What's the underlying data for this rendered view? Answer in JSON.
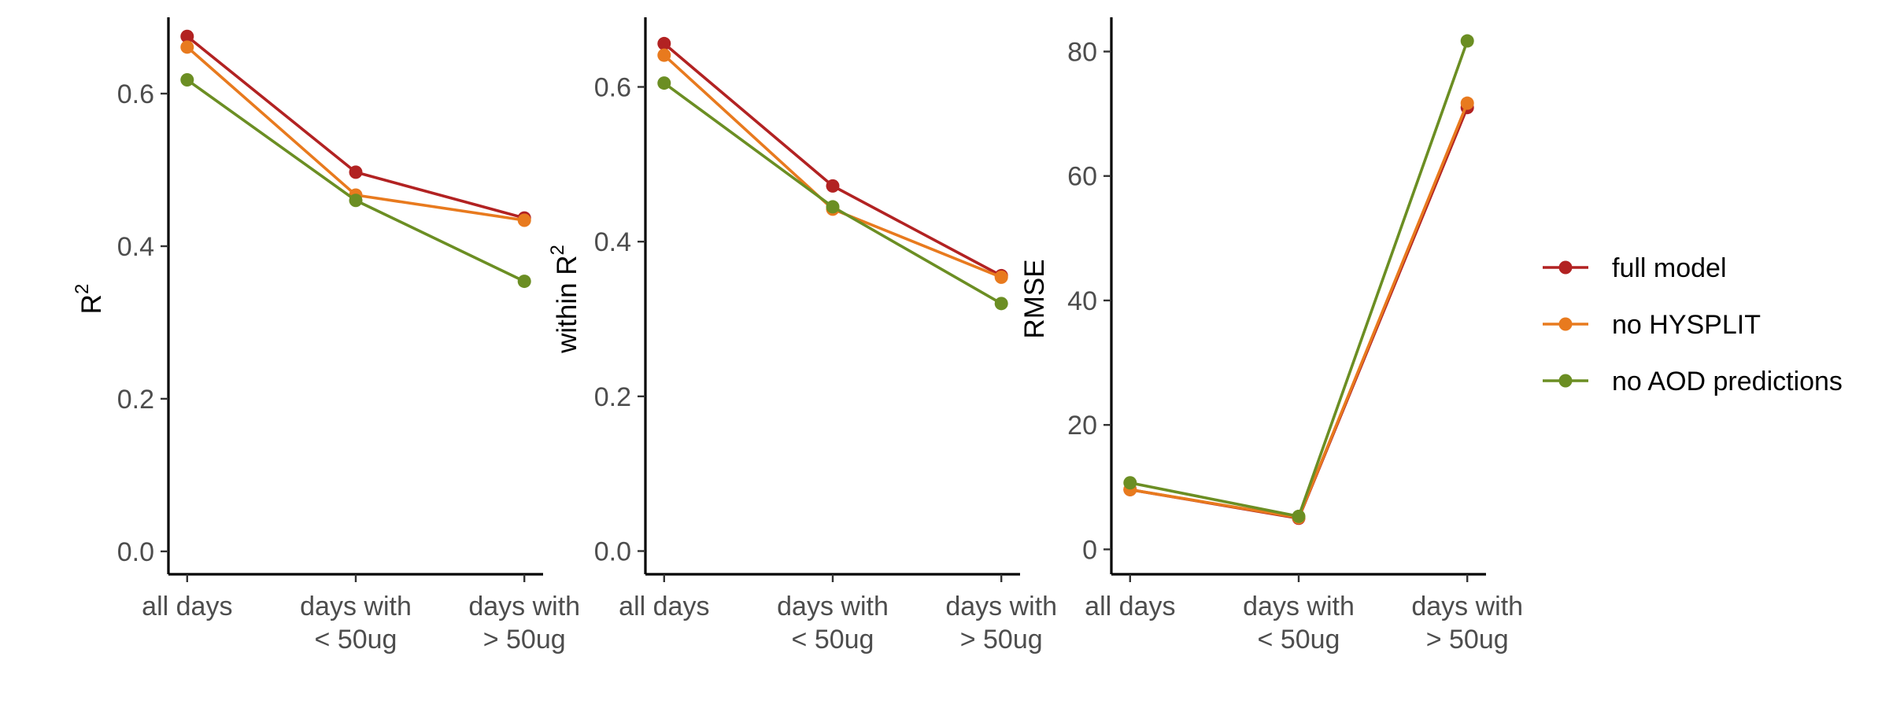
{
  "chart_data": [
    {
      "type": "line",
      "ylabel": "R²",
      "ylabel_main": "R",
      "ylabel_sup": "2",
      "categories": [
        "all days",
        "days with\n< 50ug",
        "days with\n> 50ug"
      ],
      "ylim": [
        -0.03,
        0.7
      ],
      "yticks": [
        0.0,
        0.2,
        0.4,
        0.6
      ],
      "ytick_labels": [
        "0.0",
        "0.2",
        "0.4",
        "0.6"
      ],
      "series": [
        {
          "name": "full model",
          "values": [
            0.675,
            0.497,
            0.437
          ]
        },
        {
          "name": "no HYSPLIT",
          "values": [
            0.661,
            0.467,
            0.434
          ]
        },
        {
          "name": "no AOD predictions",
          "values": [
            0.618,
            0.46,
            0.354
          ]
        }
      ]
    },
    {
      "type": "line",
      "ylabel": "within R²",
      "ylabel_main": "within R",
      "ylabel_sup": "2",
      "categories": [
        "all days",
        "days with\n< 50ug",
        "days with\n> 50ug"
      ],
      "ylim": [
        -0.03,
        0.69
      ],
      "yticks": [
        0.0,
        0.2,
        0.4,
        0.6
      ],
      "ytick_labels": [
        "0.0",
        "0.2",
        "0.4",
        "0.6"
      ],
      "series": [
        {
          "name": "full model",
          "values": [
            0.656,
            0.472,
            0.356
          ]
        },
        {
          "name": "no HYSPLIT",
          "values": [
            0.641,
            0.442,
            0.354
          ]
        },
        {
          "name": "no AOD predictions",
          "values": [
            0.605,
            0.445,
            0.32
          ]
        }
      ]
    },
    {
      "type": "line",
      "ylabel": "RMSE",
      "ylabel_main": "RMSE",
      "ylabel_sup": "",
      "categories": [
        "all days",
        "days with\n< 50ug",
        "days with\n> 50ug"
      ],
      "ylim": [
        -4,
        85.5
      ],
      "yticks": [
        0,
        20,
        40,
        60,
        80
      ],
      "ytick_labels": [
        "0",
        "20",
        "40",
        "60",
        "80"
      ],
      "series": [
        {
          "name": "full model",
          "values": [
            9.6,
            5.0,
            71.0
          ]
        },
        {
          "name": "no HYSPLIT",
          "values": [
            9.6,
            5.1,
            71.7
          ]
        },
        {
          "name": "no AOD predictions",
          "values": [
            10.7,
            5.3,
            81.7
          ]
        }
      ]
    }
  ],
  "legend": {
    "position": "right",
    "items": [
      {
        "label": "full model",
        "color": "#B22222"
      },
      {
        "label": "no HYSPLIT",
        "color": "#E87A1E"
      },
      {
        "label": "no AOD predictions",
        "color": "#6B8E23"
      }
    ]
  },
  "colors": {
    "full model": "#B22222",
    "no HYSPLIT": "#E87A1E",
    "no AOD predictions": "#6B8E23"
  }
}
